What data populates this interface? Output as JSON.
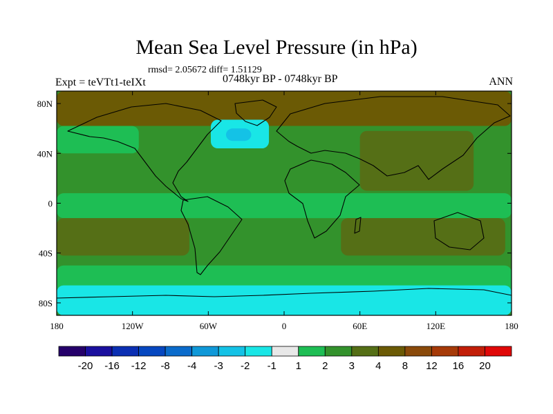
{
  "chart_data": {
    "type": "heatmap",
    "title": "Mean Sea Level Pressure (in hPa)",
    "subtitle": "rmsd= 2.05672 diff= 1.51129",
    "experiment_label": "Expt = teVTt1-teIXt",
    "period_label": "0748kyr BP - 0748kyr BP",
    "season_label": "ANN",
    "lon_range": [
      -180,
      180
    ],
    "lat_range": [
      -90,
      90
    ],
    "x_ticks": [
      {
        "lon": -180,
        "label": "180"
      },
      {
        "lon": -120,
        "label": "120W"
      },
      {
        "lon": -60,
        "label": "60W"
      },
      {
        "lon": 0,
        "label": "0"
      },
      {
        "lon": 60,
        "label": "60E"
      },
      {
        "lon": 120,
        "label": "120E"
      },
      {
        "lon": 180,
        "label": "180"
      }
    ],
    "y_ticks": [
      {
        "lat": 80,
        "label": "80N"
      },
      {
        "lat": 40,
        "label": "40N"
      },
      {
        "lat": 0,
        "label": "0"
      },
      {
        "lat": -40,
        "label": "40S"
      },
      {
        "lat": -80,
        "label": "80S"
      }
    ],
    "colorbar": {
      "colors": [
        "#25006a",
        "#1a0f9e",
        "#0b2fb3",
        "#0647c0",
        "#0a6bcb",
        "#0f98d8",
        "#14c2e6",
        "#19e6e6",
        "#e8e8e8",
        "#1ebe54",
        "#33922c",
        "#556f16",
        "#6b5a05",
        "#8a4a0a",
        "#a63a08",
        "#c21e08",
        "#e00808"
      ],
      "labels": [
        "-20",
        "-16",
        "-12",
        "-8",
        "-4",
        "-3",
        "-2",
        "-1",
        "1",
        "2",
        "3",
        "4",
        "8",
        "12",
        "16",
        "20"
      ]
    },
    "regions": [
      {
        "desc": "background positive anomaly",
        "lon": [
          -180,
          180
        ],
        "lat": [
          -90,
          90
        ],
        "level": 2
      },
      {
        "desc": "arctic high",
        "lon": [
          -180,
          180
        ],
        "lat": [
          62,
          90
        ],
        "level": 4
      },
      {
        "desc": "north atlantic low",
        "lon": [
          -58,
          -12
        ],
        "lat": [
          44,
          67
        ],
        "level": -2
      },
      {
        "desc": "north atlantic low core",
        "lon": [
          -46,
          -26
        ],
        "lat": [
          50,
          60
        ],
        "level": -3
      },
      {
        "desc": "north pacific near zero",
        "lon": [
          -180,
          -115
        ],
        "lat": [
          40,
          62
        ],
        "level": 1
      },
      {
        "desc": "asian high",
        "lon": [
          60,
          150
        ],
        "lat": [
          10,
          58
        ],
        "level": 3
      },
      {
        "desc": "equatorial band",
        "lon": [
          -180,
          180
        ],
        "lat": [
          -12,
          8
        ],
        "level": 1
      },
      {
        "desc": "south pacific high",
        "lon": [
          -180,
          -75
        ],
        "lat": [
          -42,
          -12
        ],
        "level": 3
      },
      {
        "desc": "indian ocean high",
        "lon": [
          45,
          175
        ],
        "lat": [
          -42,
          -12
        ],
        "level": 3
      },
      {
        "desc": "southern ocean neutral",
        "lon": [
          -180,
          180
        ],
        "lat": [
          -72,
          -50
        ],
        "level": 1
      },
      {
        "desc": "antarctic low",
        "lon": [
          -180,
          180
        ],
        "lat": [
          -90,
          -66
        ],
        "level": -2
      }
    ]
  }
}
